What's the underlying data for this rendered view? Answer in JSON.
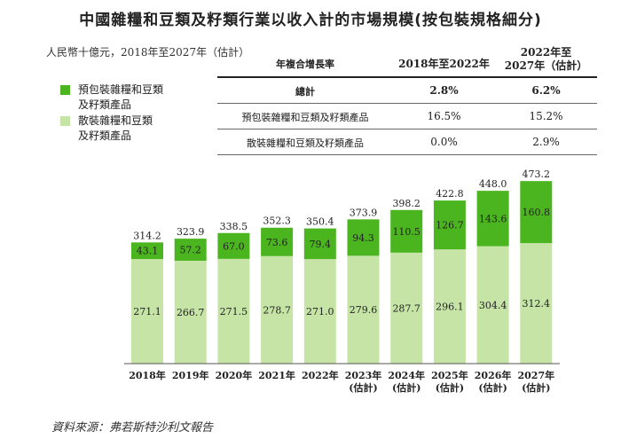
{
  "title": "中國雜糧和豆類及籽類行業以收入計的市場規模(按包裝規格細分)",
  "unit_note": "人民幣十億元，2018年至2027年（估計）",
  "legend": [
    {
      "label": "預包裝雜糧和豆類\n及籽類產品",
      "color": "#4bb51f"
    },
    {
      "label": "散裝雜糧和豆類\n及籽類產品",
      "color": "#c5e4a6"
    }
  ],
  "cagr_table": {
    "header": {
      "label": "年複合增長率",
      "col1": "2018年至2022年",
      "col2": "2022年至\n2027年（估計）"
    },
    "rows": [
      {
        "label": "總計",
        "col1": "2.8%",
        "col2": "6.2%",
        "bold": true
      },
      {
        "label": "預包裝雜糧和豆類及籽類產品",
        "col1": "16.5%",
        "col2": "15.2%",
        "bold": false
      },
      {
        "label": "散裝雜糧和豆類及籽類產品",
        "col1": "0.0%",
        "col2": "2.9%",
        "bold": false
      }
    ]
  },
  "chart_data": {
    "type": "bar",
    "stacked": true,
    "categories": [
      "2018年",
      "2019年",
      "2020年",
      "2021年",
      "2022年",
      "2023年\n(估計)",
      "2024年\n(估計)",
      "2025年\n(估計)",
      "2026年\n(估計)",
      "2027年\n(估計)"
    ],
    "series": [
      {
        "name": "散裝雜糧和豆類及籽類產品",
        "color": "#c5e4a6",
        "values": [
          271.1,
          266.7,
          271.5,
          278.7,
          271.0,
          279.6,
          287.7,
          296.1,
          304.4,
          312.4
        ]
      },
      {
        "name": "預包裝雜糧和豆類及籽類產品",
        "color": "#4bb51f",
        "values": [
          43.1,
          57.2,
          67.0,
          73.6,
          79.4,
          94.3,
          110.5,
          126.7,
          143.6,
          160.8
        ]
      }
    ],
    "totals": [
      314.2,
      323.9,
      338.5,
      352.3,
      350.4,
      373.9,
      398.2,
      422.8,
      448.0,
      473.2
    ],
    "ylim": [
      0,
      500
    ],
    "xlabel": "",
    "ylabel": ""
  },
  "source": "資料來源：弗若斯特沙利文報告"
}
